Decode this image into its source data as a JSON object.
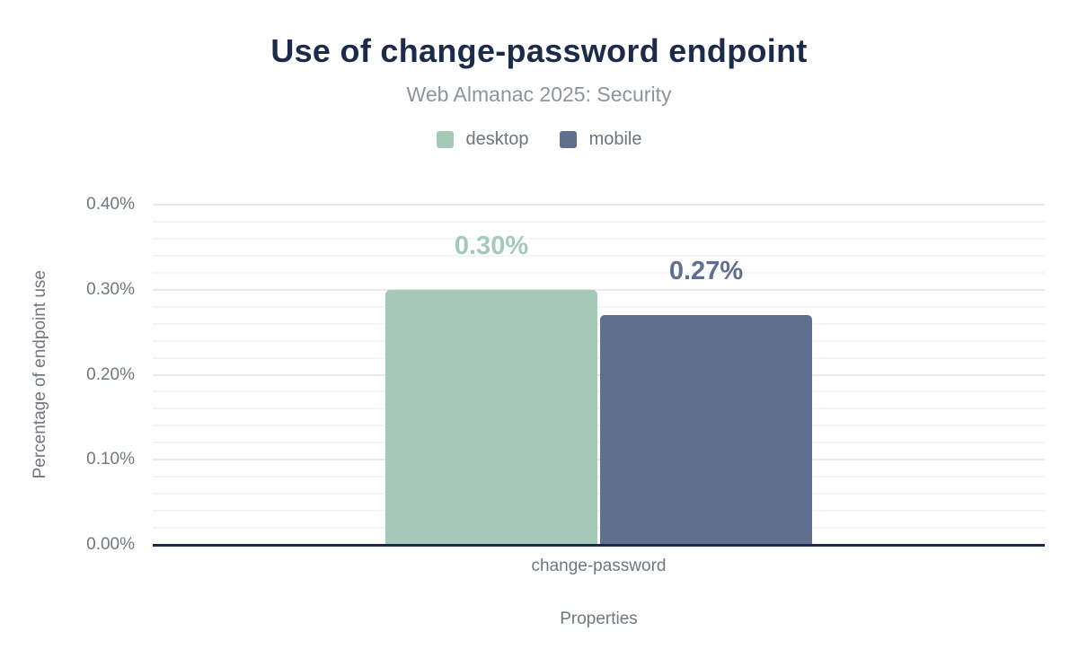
{
  "chart_data": {
    "type": "bar",
    "title": "Use of change-password endpoint",
    "subtitle": "Web Almanac 2025: Security",
    "categories": [
      "change-password"
    ],
    "series": [
      {
        "name": "desktop",
        "values": [
          0.3
        ],
        "labels": [
          "0.30%"
        ],
        "color": "#a5c9b8"
      },
      {
        "name": "mobile",
        "values": [
          0.27
        ],
        "labels": [
          "0.27%"
        ],
        "color": "#5e708e"
      }
    ],
    "xlabel": "Properties",
    "ylabel": "Percentage of endpoint use",
    "ylim": [
      0,
      0.4
    ],
    "ymajor_step": 0.1,
    "yminor_step": 0.02,
    "yticks": [
      {
        "value": 0.0,
        "label": "0.00%"
      },
      {
        "value": 0.1,
        "label": "0.10%"
      },
      {
        "value": 0.2,
        "label": "0.20%"
      },
      {
        "value": 0.3,
        "label": "0.30%"
      },
      {
        "value": 0.4,
        "label": "0.40%"
      }
    ],
    "grid": true,
    "legend_position": "top",
    "colors": {
      "title": "#1c2b4a",
      "subtitle": "#8f949c",
      "axis_text": "#71767f",
      "axis_line": "#1c2b4a",
      "grid_major": "#e7e9ec",
      "grid_minor": "#f4f5f7",
      "background": "#ffffff"
    }
  }
}
